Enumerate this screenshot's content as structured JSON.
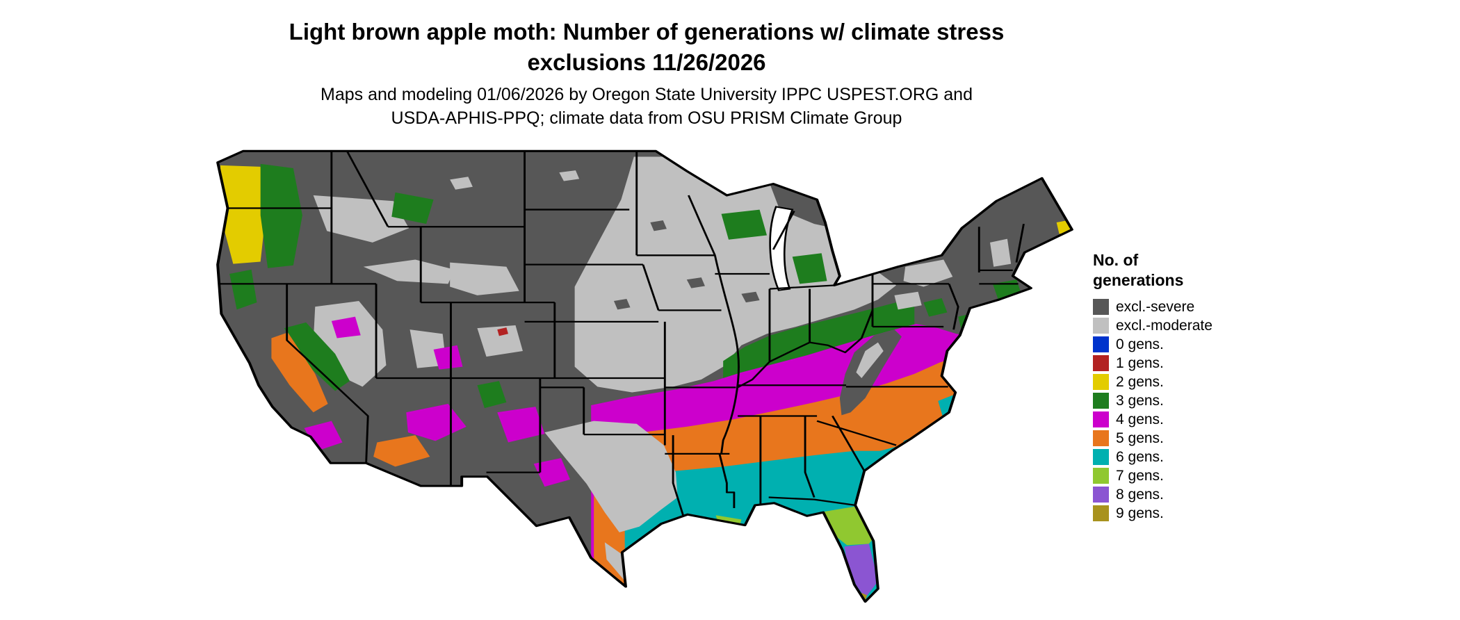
{
  "title": {
    "line1": "Light brown apple moth: Number of generations w/ climate stress",
    "line2": "exclusions 11/26/2026"
  },
  "subtitle": {
    "line1": "Maps and modeling 01/06/2026 by Oregon State University IPPC USPEST.ORG and",
    "line2": "USDA-APHIS-PPQ; climate data from OSU PRISM Climate Group"
  },
  "legend": {
    "title_line1": "No. of",
    "title_line2": "generations",
    "items": [
      {
        "key": "excl_severe",
        "label": "excl.-severe"
      },
      {
        "key": "excl_moderate",
        "label": "excl.-moderate"
      },
      {
        "key": "g0",
        "label": "0 gens."
      },
      {
        "key": "g1",
        "label": "1 gens."
      },
      {
        "key": "g2",
        "label": "2 gens."
      },
      {
        "key": "g3",
        "label": "3 gens."
      },
      {
        "key": "g4",
        "label": "4 gens."
      },
      {
        "key": "g5",
        "label": "5 gens."
      },
      {
        "key": "g6",
        "label": "6 gens."
      },
      {
        "key": "g7",
        "label": "7 gens."
      },
      {
        "key": "g8",
        "label": "8 gens."
      },
      {
        "key": "g9",
        "label": "9 gens."
      }
    ]
  },
  "map": {
    "description": "Continental US choropleth of light brown apple moth generations with climate stress exclusions",
    "outline_color": "#000000",
    "water_color": "#ffffff",
    "background": "#ffffff",
    "colors": {
      "excl_severe": "#575757",
      "excl_moderate": "#c0c0c0",
      "g0": "#0033cc",
      "g1": "#b22222",
      "g2": "#e3cc00",
      "g3": "#1e7d1e",
      "g4": "#cc00cc",
      "g5": "#e8761d",
      "g6": "#00b0b0",
      "g7": "#90c830",
      "g8": "#8b55d2",
      "g9": "#a8921e"
    }
  }
}
